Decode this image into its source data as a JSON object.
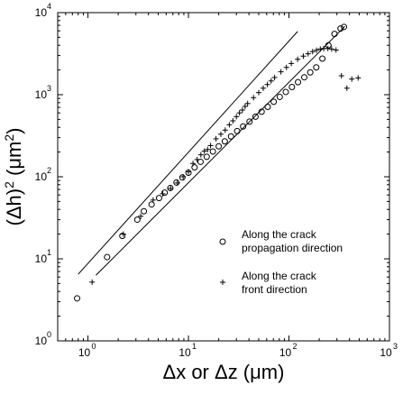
{
  "chart_data": {
    "type": "scatter",
    "x_scale": "log",
    "y_scale": "log",
    "xlim": [
      0.5,
      1000
    ],
    "ylim": [
      1,
      10000
    ],
    "x_ticks": [
      {
        "value": 1,
        "base": "10",
        "exp": "0"
      },
      {
        "value": 10,
        "base": "10",
        "exp": "1"
      },
      {
        "value": 100,
        "base": "10",
        "exp": "2"
      },
      {
        "value": 1000,
        "base": "10",
        "exp": "3"
      }
    ],
    "y_ticks": [
      {
        "value": 1,
        "base": "10",
        "exp": "0"
      },
      {
        "value": 10,
        "base": "10",
        "exp": "1"
      },
      {
        "value": 100,
        "base": "10",
        "exp": "2"
      },
      {
        "value": 1000,
        "base": "10",
        "exp": "3"
      },
      {
        "value": 10000,
        "base": "10",
        "exp": "4"
      }
    ],
    "xlabel": "Δx or Δz (μm)",
    "ylabel": {
      "prefix": "(Δh)",
      "sup": "2",
      "unit": " (μm",
      "unit_sup": "2",
      "suffix": ")"
    },
    "legend_position": "lower-right",
    "series": [
      {
        "name": "Along the crack propagation direction",
        "marker": "circle",
        "x": [
          0.78,
          1.55,
          2.2,
          3.1,
          3.6,
          4.3,
          5.1,
          5.8,
          6.6,
          7.6,
          8.7,
          10,
          11.5,
          13.2,
          15.2,
          17.5,
          20,
          23,
          26.5,
          30.5,
          35,
          40.5,
          46.5,
          53.5,
          61.5,
          70.5,
          81,
          93,
          107,
          123,
          142,
          163,
          187,
          215,
          247,
          284,
          326,
          353
        ],
        "y": [
          3.3,
          10.5,
          19,
          30,
          38,
          46,
          55,
          64,
          73,
          85,
          98,
          112,
          130,
          152,
          175,
          203,
          235,
          270,
          310,
          360,
          410,
          470,
          540,
          620,
          710,
          820,
          940,
          1080,
          1240,
          1420,
          1630,
          1870,
          2150,
          2750,
          4000,
          5500,
          6400,
          6700
        ]
      },
      {
        "name": "Along the crack front direction",
        "marker": "plus",
        "x": [
          1.1,
          2.25,
          3.35,
          4.45,
          5.55,
          6.65,
          7.75,
          8.85,
          10,
          11.1,
          12.2,
          13.3,
          14.4,
          15.5,
          16.6,
          18.8,
          21,
          23.2,
          25.5,
          27.7,
          30,
          32.2,
          34.4,
          36.6,
          38.8,
          44.4,
          50,
          55.5,
          61,
          66.5,
          72,
          83.2,
          94.4,
          105.5,
          122,
          139,
          155,
          172,
          188,
          205,
          222,
          244,
          266,
          294,
          333,
          377,
          422,
          488
        ],
        "y": [
          5.2,
          20,
          33,
          52,
          62,
          72,
          84,
          100,
          115,
          145,
          162,
          185,
          205,
          215,
          240,
          290,
          330,
          370,
          430,
          480,
          540,
          600,
          650,
          720,
          780,
          920,
          1060,
          1200,
          1330,
          1470,
          1620,
          1900,
          2150,
          2400,
          2700,
          2950,
          3150,
          3350,
          3480,
          3600,
          3650,
          3650,
          3600,
          3500,
          1700,
          1200,
          1550,
          1600
        ]
      }
    ],
    "fit_lines": [
      {
        "x": [
          0.8,
          122
        ],
        "y": [
          6.5,
          5900
        ]
      },
      {
        "x": [
          1.2,
          360
        ],
        "y": [
          6.3,
          6800
        ]
      }
    ],
    "legend": [
      {
        "lines": [
          "Along the crack",
          "propagation direction"
        ],
        "marker": "circle"
      },
      {
        "lines": [
          "Along the crack",
          "front direction"
        ],
        "marker": "plus"
      }
    ]
  }
}
